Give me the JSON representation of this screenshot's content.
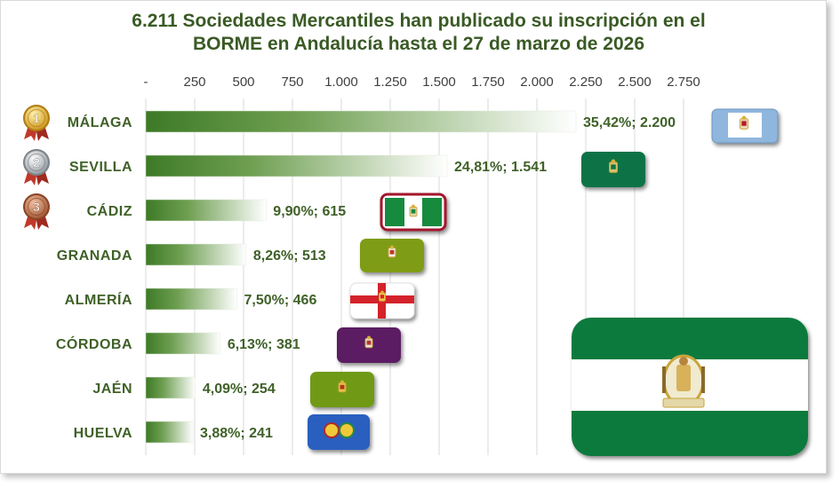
{
  "title": {
    "line1": "6.211 Sociedades Mercantiles han publicado su inscripción en el",
    "line2": "BORME en Andalucía hasta el 27 de marzo de 2026"
  },
  "colors": {
    "bar_dark": "#3d7a26",
    "bar_light": "#ffffff",
    "text": "#3f6128",
    "gold": "#e8b52a",
    "silver": "#a9b0b5",
    "bronze": "#b86b45",
    "ribbon": "#c0392b"
  },
  "chart_data": {
    "type": "bar",
    "orientation": "horizontal",
    "title": "6.211 Sociedades Mercantiles han publicado su inscripción en el BORME en Andalucía hasta el 27 de marzo de 2026",
    "categories": [
      "MÁLAGA",
      "SEVILLA",
      "CÁDIZ",
      "GRANADA",
      "ALMERÍA",
      "CÓRDOBA",
      "JAÉN",
      "HUELVA"
    ],
    "values": [
      2200,
      1541,
      615,
      513,
      466,
      381,
      254,
      241
    ],
    "percentages": [
      35.42,
      24.81,
      9.9,
      8.26,
      7.5,
      6.13,
      4.09,
      3.88
    ],
    "data_labels": [
      "35,42%; 2.200",
      "24,81%; 1.541",
      "9,90%; 615",
      "8,26%; 513",
      "7,50%; 466",
      "6,13%; 381",
      "4,09%; 254",
      "3,88%; 241"
    ],
    "xlim": [
      0,
      2750
    ],
    "x_ticks": [
      0,
      250,
      500,
      750,
      1000,
      1250,
      1500,
      1750,
      2000,
      2250,
      2500,
      2750
    ],
    "x_tick_labels": [
      "-",
      "250",
      "500",
      "750",
      "1.000",
      "1.250",
      "1.500",
      "1.750",
      "2.000",
      "2.250",
      "2.500",
      "2.750"
    ],
    "x_axis_position": "top",
    "grid": true,
    "legend": "none",
    "medals": [
      {
        "rank": "1",
        "category": "MÁLAGA",
        "icon": "gold-medal-icon"
      },
      {
        "rank": "2",
        "category": "SEVILLA",
        "icon": "silver-medal-icon"
      },
      {
        "rank": "3",
        "category": "CÁDIZ",
        "icon": "bronze-medal-icon"
      }
    ],
    "flags": [
      {
        "category": "MÁLAGA",
        "icon": "malaga-flag-icon",
        "colors": [
          "#8fb6dc",
          "#ffffff"
        ]
      },
      {
        "category": "SEVILLA",
        "icon": "sevilla-flag-icon",
        "colors": [
          "#0a7346"
        ]
      },
      {
        "category": "CÁDIZ",
        "icon": "cadiz-flag-icon",
        "colors": [
          "#138a3c",
          "#ffffff",
          "#a3162c"
        ]
      },
      {
        "category": "GRANADA",
        "icon": "granada-flag-icon",
        "colors": [
          "#7f9c16"
        ]
      },
      {
        "category": "ALMERÍA",
        "icon": "almeria-flag-icon",
        "colors": [
          "#ffffff",
          "#d4202a"
        ]
      },
      {
        "category": "CÓRDOBA",
        "icon": "cordoba-flag-icon",
        "colors": [
          "#5c1f63"
        ]
      },
      {
        "category": "JAÉN",
        "icon": "jaen-flag-icon",
        "colors": [
          "#6f9a16"
        ]
      },
      {
        "category": "HUELVA",
        "icon": "huelva-flag-icon",
        "colors": [
          "#2c5fbf"
        ]
      },
      {
        "category": "Andalucía",
        "icon": "andalucia-flag-icon",
        "colors": [
          "#0b7a3e",
          "#ffffff"
        ]
      }
    ]
  }
}
